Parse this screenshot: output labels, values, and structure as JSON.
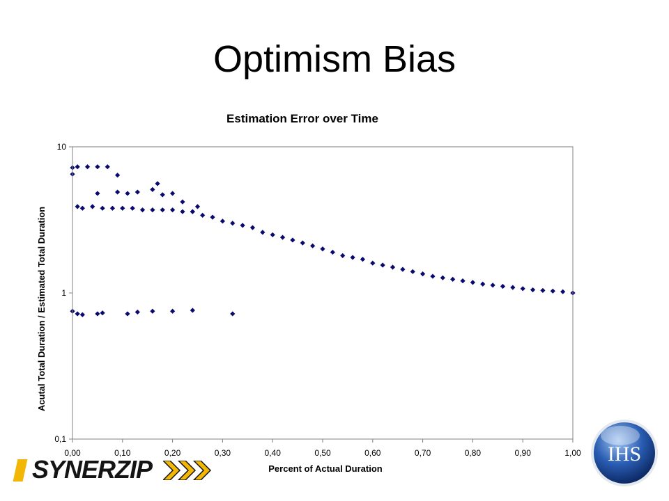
{
  "slide": {
    "title": "Optimism Bias"
  },
  "logos": {
    "left_text": "SYNERZIP",
    "left_icon": "synerzip-chevrons-icon",
    "right_text": "IHS",
    "right_icon": "ihs-globe-icon"
  },
  "colors": {
    "marker": "#0a0a6e",
    "plot_border": "#808080",
    "logo_accent": "#f2b705",
    "ihs_blue": "#1f4fa0"
  },
  "chart_data": {
    "type": "scatter",
    "title": "Estimation Error over Time",
    "xlabel": "Percent of Actual Duration",
    "ylabel": "Acutal Total Duration / Estimated Total Duration",
    "xlim": [
      0,
      1
    ],
    "ylim": [
      0.1,
      10
    ],
    "yscale": "log",
    "grid": false,
    "legend": "none",
    "marker": "diamond",
    "x_ticks": [
      "0,00",
      "0,10",
      "0,20",
      "0,30",
      "0,40",
      "0,50",
      "0,60",
      "0,70",
      "0,80",
      "0,90",
      "1,00"
    ],
    "y_ticks": [
      "10",
      "1",
      "0,1"
    ],
    "series": [
      {
        "x": [
          0.0,
          0.0,
          0.01,
          0.03,
          0.05,
          0.07,
          0.09,
          0.11,
          0.05,
          0.09,
          0.13,
          0.16,
          0.18,
          0.2,
          0.22,
          0.24,
          0.25,
          0.17,
          0.01,
          0.02,
          0.04,
          0.06,
          0.08,
          0.1,
          0.12,
          0.14,
          0.16,
          0.18,
          0.2,
          0.22,
          0.24,
          0.26,
          0.28,
          0.3,
          0.32,
          0.34,
          0.36,
          0.38,
          0.4,
          0.42,
          0.44,
          0.46,
          0.48,
          0.5,
          0.52,
          0.54,
          0.56,
          0.58,
          0.6,
          0.62,
          0.64,
          0.66,
          0.68,
          0.7,
          0.72,
          0.74,
          0.76,
          0.78,
          0.8,
          0.82,
          0.84,
          0.86,
          0.88,
          0.9,
          0.92,
          0.94,
          0.96,
          0.98,
          1.0,
          0.0,
          0.01,
          0.02,
          0.05,
          0.06,
          0.11,
          0.13,
          0.16,
          0.2,
          0.24,
          0.32
        ],
        "y": [
          7.2,
          6.5,
          7.3,
          7.3,
          7.3,
          7.3,
          6.4,
          4.8,
          4.8,
          4.9,
          4.9,
          5.1,
          4.7,
          4.8,
          4.2,
          3.6,
          3.9,
          5.6,
          3.9,
          3.8,
          3.9,
          3.8,
          3.8,
          3.8,
          3.8,
          3.7,
          3.7,
          3.7,
          3.7,
          3.6,
          3.6,
          3.4,
          3.3,
          3.1,
          3.0,
          2.9,
          2.8,
          2.6,
          2.5,
          2.4,
          2.3,
          2.2,
          2.1,
          2.0,
          1.9,
          1.8,
          1.75,
          1.7,
          1.6,
          1.55,
          1.5,
          1.45,
          1.4,
          1.35,
          1.3,
          1.27,
          1.24,
          1.21,
          1.18,
          1.15,
          1.13,
          1.11,
          1.09,
          1.07,
          1.05,
          1.04,
          1.03,
          1.02,
          1.0,
          0.75,
          0.72,
          0.71,
          0.72,
          0.73,
          0.72,
          0.74,
          0.75,
          0.75,
          0.76,
          0.72
        ]
      }
    ]
  }
}
